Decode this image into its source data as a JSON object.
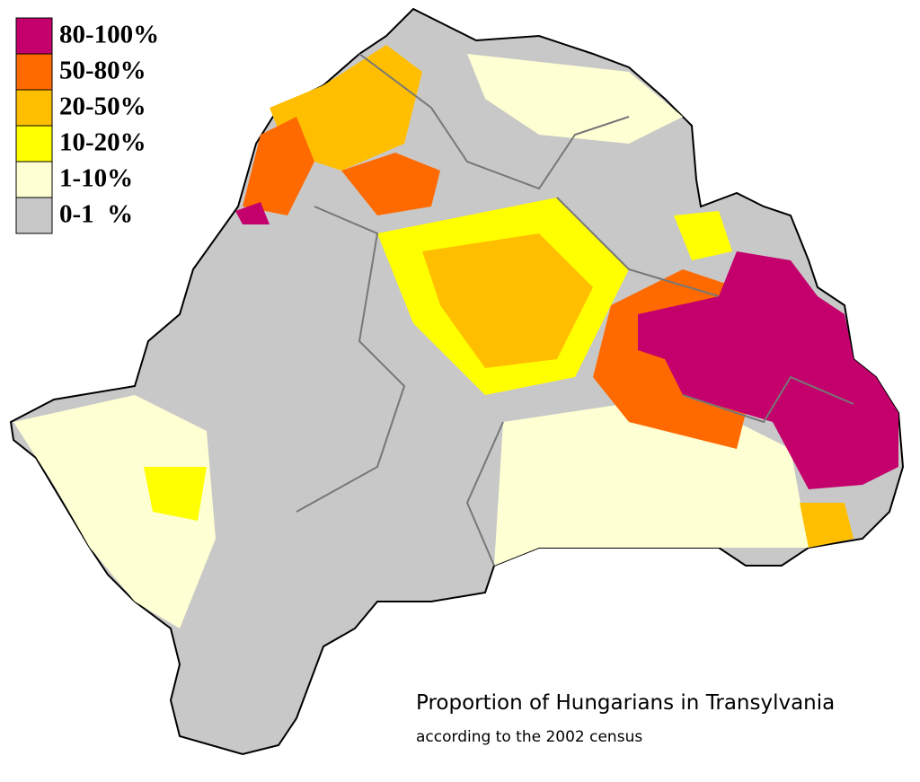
{
  "legend": {
    "items": [
      {
        "label": "80-100%",
        "color": "#c4006c"
      },
      {
        "label": "50-80%",
        "color": "#ff6a00"
      },
      {
        "label": "20-50%",
        "color": "#ffbf00"
      },
      {
        "label": "10-20%",
        "color": "#ffff00"
      },
      {
        "label": "1-10%",
        "color": "#ffffd4"
      },
      {
        "label": "0-1  %",
        "color": "#c8c8c8"
      }
    ]
  },
  "caption": {
    "title": "Proportion of Hungarians in Transylvania",
    "subtitle": "according to the 2002 census"
  }
}
